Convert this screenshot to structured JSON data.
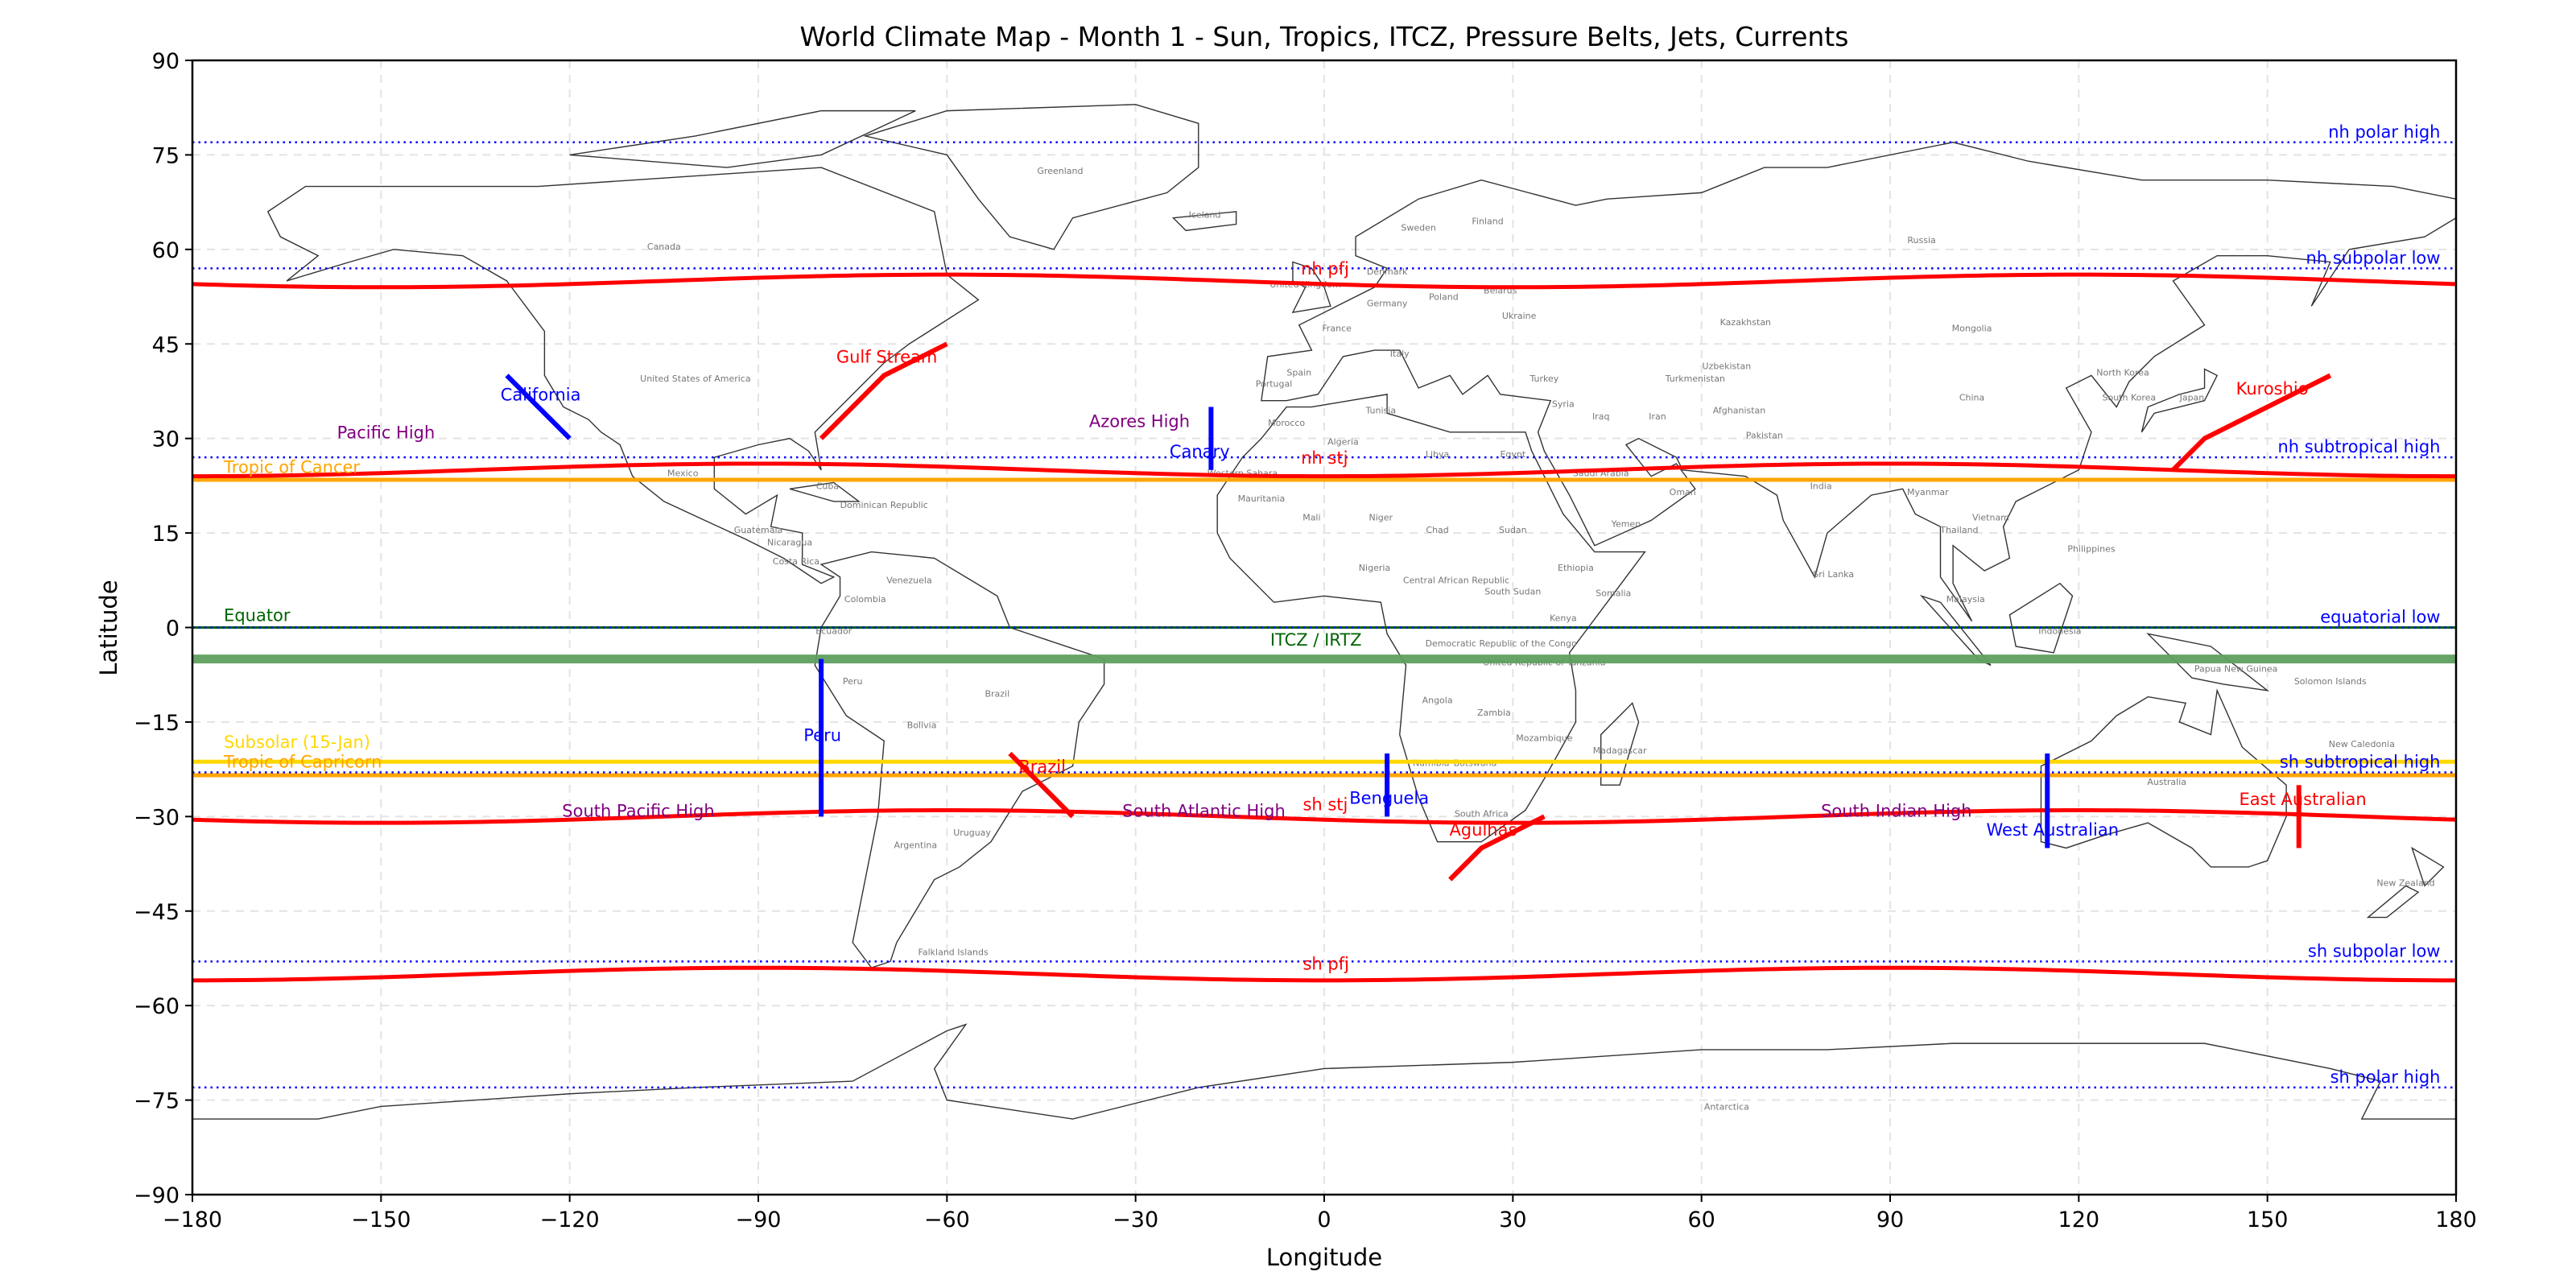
{
  "chart_data": {
    "type": "map",
    "title": "World Climate Map - Month 1 - Sun, Tropics, ITCZ, Pressure Belts, Jets, Currents",
    "xlabel": "Longitude",
    "ylabel": "Latitude",
    "xlim": [
      -180,
      180
    ],
    "ylim": [
      -90,
      90
    ],
    "xticks": [
      -180,
      -150,
      -120,
      -90,
      -60,
      -30,
      0,
      30,
      60,
      90,
      120,
      150,
      180
    ],
    "yticks": [
      -90,
      -75,
      -60,
      -45,
      -30,
      -15,
      0,
      15,
      30,
      45,
      60,
      75,
      90
    ],
    "grid": true,
    "colors": {
      "jet": "#ff0000",
      "warm_current": "#ff0000",
      "cold_current": "#0000ff",
      "pressure_belt": "#0000ff",
      "high_label": "#800080",
      "equator": "#006400",
      "itcz": "#5f9f5f",
      "tropic": "#ffa500",
      "subsolar": "#ffd700",
      "coastline": "#000000",
      "country_label": "#777777"
    },
    "reference_lines": [
      {
        "label": "Equator",
        "lat": 0,
        "color": "#006400",
        "label_lon": -175,
        "label_lat": 1
      },
      {
        "label": "Tropic of Cancer",
        "lat": 23.44,
        "color": "#ffa500",
        "label_lon": -175,
        "label_lat": 24.5
      },
      {
        "label": "Tropic of Capricorn",
        "lat": -23.44,
        "color": "#ffa500",
        "label_lon": -175,
        "label_lat": -22.2
      },
      {
        "label": "Subsolar (15-Jan)",
        "lat": -21.3,
        "color": "#ffd700",
        "label_lon": -175,
        "label_lat": -20.4
      }
    ],
    "itcz": {
      "label": "ITCZ / IRTZ",
      "lat": -5,
      "label_lon": -8.6,
      "label_lat": -2.9
    },
    "pressure_belts": [
      {
        "label": "nh polar high",
        "lat": 77
      },
      {
        "label": "nh subpolar low",
        "lat": 57
      },
      {
        "label": "nh subtropical high",
        "lat": 27
      },
      {
        "label": "equatorial low",
        "lat": 0
      },
      {
        "label": "sh subtropical high",
        "lat": -23
      },
      {
        "label": "sh subpolar low",
        "lat": -53
      },
      {
        "label": "sh polar high",
        "lat": -73
      }
    ],
    "jets": [
      {
        "label": "nh pfj",
        "lat": 55,
        "amplitude_deg": 1,
        "label_lon": -3.7,
        "label_lat": 56
      },
      {
        "label": "nh stj",
        "lat": 25,
        "amplitude_deg": 1,
        "label_lon": -3.7,
        "label_lat": 26
      },
      {
        "label": "sh stj",
        "lat": -30,
        "amplitude_deg": 1,
        "label_lon": -3.4,
        "label_lat": -29
      },
      {
        "label": "sh pfj",
        "lat": -55,
        "amplitude_deg": 1,
        "label_lon": -3.4,
        "label_lat": -54.3
      }
    ],
    "currents": [
      {
        "label": "California",
        "type": "cold",
        "path": [
          [
            -130,
            40
          ],
          [
            -120,
            30
          ]
        ],
        "label_lon": -131,
        "label_lat": 36
      },
      {
        "label": "Gulf Stream",
        "type": "warm",
        "path": [
          [
            -80,
            30
          ],
          [
            -70,
            40
          ],
          [
            -60,
            45
          ]
        ],
        "label_lon": -77.6,
        "label_lat": 42
      },
      {
        "label": "Canary",
        "type": "cold",
        "path": [
          [
            -18,
            35
          ],
          [
            -18,
            25
          ]
        ],
        "label_lon": -24.6,
        "label_lat": 27
      },
      {
        "label": "Kuroshio",
        "type": "warm",
        "path": [
          [
            135,
            25
          ],
          [
            140,
            30
          ],
          [
            160,
            40
          ]
        ],
        "label_lon": 145,
        "label_lat": 37
      },
      {
        "label": "Peru",
        "type": "cold",
        "path": [
          [
            -80,
            -5
          ],
          [
            -80,
            -30
          ]
        ],
        "label_lon": -82.8,
        "label_lat": -18
      },
      {
        "label": "Brazil",
        "type": "warm",
        "path": [
          [
            -50,
            -20
          ],
          [
            -40,
            -30
          ]
        ],
        "label_lon": -48.6,
        "label_lat": -23
      },
      {
        "label": "Benguela",
        "type": "cold",
        "path": [
          [
            10,
            -20
          ],
          [
            10,
            -30
          ]
        ],
        "label_lon": 4,
        "label_lat": -28
      },
      {
        "label": "Agulhas",
        "type": "warm",
        "path": [
          [
            35,
            -30
          ],
          [
            25,
            -35
          ],
          [
            20,
            -40
          ]
        ],
        "label_lon": 19.9,
        "label_lat": -33
      },
      {
        "label": "West Australian",
        "type": "cold",
        "path": [
          [
            115,
            -20
          ],
          [
            115,
            -35
          ]
        ],
        "label_lon": 105.3,
        "label_lat": -33
      },
      {
        "label": "East Australian",
        "type": "warm",
        "path": [
          [
            155,
            -25
          ],
          [
            155,
            -35
          ]
        ],
        "label_lon": 145.5,
        "label_lat": -28.2
      }
    ],
    "high_pressure_cells": [
      {
        "label": "Pacific High",
        "lon": -157,
        "lat": 30
      },
      {
        "label": "Azores High",
        "lon": -37.4,
        "lat": 31.8
      },
      {
        "label": "South Pacific High",
        "lon": -121.2,
        "lat": -30
      },
      {
        "label": "South Atlantic High",
        "lon": -32.1,
        "lat": -30
      },
      {
        "label": "South Indian High",
        "lon": 79,
        "lat": -30
      }
    ],
    "country_labels": [
      {
        "name": "Greenland",
        "lon": -42,
        "lat": 72
      },
      {
        "name": "Iceland",
        "lon": -19,
        "lat": 65
      },
      {
        "name": "Canada",
        "lon": -105,
        "lat": 60
      },
      {
        "name": "United States of America",
        "lon": -100,
        "lat": 39
      },
      {
        "name": "Mexico",
        "lon": -102,
        "lat": 24
      },
      {
        "name": "Cuba",
        "lon": -79,
        "lat": 22
      },
      {
        "name": "Dominican Republic",
        "lon": -70,
        "lat": 19
      },
      {
        "name": "Guatemala",
        "lon": -90,
        "lat": 15
      },
      {
        "name": "Nicaragua",
        "lon": -85,
        "lat": 13
      },
      {
        "name": "Costa Rica",
        "lon": -84,
        "lat": 10
      },
      {
        "name": "Venezuela",
        "lon": -66,
        "lat": 7
      },
      {
        "name": "Colombia",
        "lon": -73,
        "lat": 4
      },
      {
        "name": "Ecuador",
        "lon": -78,
        "lat": -1
      },
      {
        "name": "Peru",
        "lon": -75,
        "lat": -9
      },
      {
        "name": "Brazil",
        "lon": -52,
        "lat": -11
      },
      {
        "name": "Bolivia",
        "lon": -64,
        "lat": -16
      },
      {
        "name": "Argentina",
        "lon": -65,
        "lat": -35
      },
      {
        "name": "Uruguay",
        "lon": -56,
        "lat": -33
      },
      {
        "name": "Falkland Islands",
        "lon": -59,
        "lat": -52
      },
      {
        "name": "Russia",
        "lon": 95,
        "lat": 61
      },
      {
        "name": "Sweden",
        "lon": 15,
        "lat": 63
      },
      {
        "name": "Finland",
        "lon": 26,
        "lat": 64
      },
      {
        "name": "United Kingdom",
        "lon": -3,
        "lat": 54
      },
      {
        "name": "Denmark",
        "lon": 10,
        "lat": 56
      },
      {
        "name": "Poland",
        "lon": 19,
        "lat": 52
      },
      {
        "name": "Germany",
        "lon": 10,
        "lat": 51
      },
      {
        "name": "France",
        "lon": 2,
        "lat": 47
      },
      {
        "name": "Spain",
        "lon": -4,
        "lat": 40
      },
      {
        "name": "Portugal",
        "lon": -8,
        "lat": 40
      },
      {
        "name": "Italy",
        "lon": 12,
        "lat": 43
      },
      {
        "name": "Ukraine",
        "lon": 31,
        "lat": 49
      },
      {
        "name": "Belarus",
        "lon": 28,
        "lat": 53
      },
      {
        "name": "Kazakhstan",
        "lon": 67,
        "lat": 48
      },
      {
        "name": "Mongolia",
        "lon": 103,
        "lat": 47
      },
      {
        "name": "China",
        "lon": 103,
        "lat": 36
      },
      {
        "name": "Turkey",
        "lon": 35,
        "lat": 39
      },
      {
        "name": "Iran",
        "lon": 53,
        "lat": 33
      },
      {
        "name": "Iraq",
        "lon": 44,
        "lat": 33
      },
      {
        "name": "Syria",
        "lon": 38,
        "lat": 35
      },
      {
        "name": "Saudi Arabia",
        "lon": 44,
        "lat": 24
      },
      {
        "name": "Afghanistan",
        "lon": 66,
        "lat": 34
      },
      {
        "name": "Pakistan",
        "lon": 70,
        "lat": 30
      },
      {
        "name": "India",
        "lon": 79,
        "lat": 22
      },
      {
        "name": "Turkmenistan",
        "lon": 59,
        "lat": 39
      },
      {
        "name": "Uzbekistan",
        "lon": 64,
        "lat": 41
      },
      {
        "name": "Japan",
        "lon": 138,
        "lat": 36
      },
      {
        "name": "South Korea",
        "lon": 128,
        "lat": 36
      },
      {
        "name": "North Korea",
        "lon": 127,
        "lat": 40
      },
      {
        "name": "Myanmar",
        "lon": 96,
        "lat": 21
      },
      {
        "name": "Thailand",
        "lon": 101,
        "lat": 15
      },
      {
        "name": "Vietnam",
        "lon": 106,
        "lat": 16
      },
      {
        "name": "Philippines",
        "lon": 122,
        "lat": 12
      },
      {
        "name": "Malaysia",
        "lon": 102,
        "lat": 4
      },
      {
        "name": "Indonesia",
        "lon": 117,
        "lat": -1
      },
      {
        "name": "Papua New Guinea",
        "lon": 145,
        "lat": -7
      },
      {
        "name": "Solomon Islands",
        "lon": 160,
        "lat": -9
      },
      {
        "name": "Australia",
        "lon": 134,
        "lat": -25
      },
      {
        "name": "New Zealand",
        "lon": 172,
        "lat": -41
      },
      {
        "name": "New Caledonia",
        "lon": 165,
        "lat": -21
      },
      {
        "name": "Sri Lanka",
        "lon": 81,
        "lat": 8
      },
      {
        "name": "Yemen",
        "lon": 48,
        "lat": 16
      },
      {
        "name": "Oman",
        "lon": 57,
        "lat": 21
      },
      {
        "name": "Egypt",
        "lon": 30,
        "lat": 27
      },
      {
        "name": "Libya",
        "lon": 18,
        "lat": 27
      },
      {
        "name": "Algeria",
        "lon": 3,
        "lat": 28
      },
      {
        "name": "Tunisia",
        "lon": 9,
        "lat": 34
      },
      {
        "name": "Morocco",
        "lon": -6,
        "lat": 32
      },
      {
        "name": "Western Sahara",
        "lon": -13,
        "lat": 24
      },
      {
        "name": "Mauritania",
        "lon": -10,
        "lat": 20
      },
      {
        "name": "Mali",
        "lon": -2,
        "lat": 17
      },
      {
        "name": "Niger",
        "lon": 9,
        "lat": 17
      },
      {
        "name": "Chad",
        "lon": 18,
        "lat": 15
      },
      {
        "name": "Sudan",
        "lon": 30,
        "lat": 15
      },
      {
        "name": "Ethiopia",
        "lon": 40,
        "lat": 9
      },
      {
        "name": "Somalia",
        "lon": 46,
        "lat": 5
      },
      {
        "name": "Nigeria",
        "lon": 8,
        "lat": 9
      },
      {
        "name": "Kenya",
        "lon": 38,
        "lat": 1
      },
      {
        "name": "Central African Republic",
        "lon": 21,
        "lat": 7
      },
      {
        "name": "South Sudan",
        "lon": 30,
        "lat": 7
      },
      {
        "name": "Democratic Republic of the Congo",
        "lon": 23,
        "lat": -3
      },
      {
        "name": "United Republic of Tanzania",
        "lon": 35,
        "lat": -6
      },
      {
        "name": "Angola",
        "lon": 18,
        "lat": -12
      },
      {
        "name": "Zambia",
        "lon": 27,
        "lat": -14
      },
      {
        "name": "Mozambique",
        "lon": 35,
        "lat": -18
      },
      {
        "name": "Madagascar",
        "lon": 47,
        "lat": -20
      },
      {
        "name": "Namibia",
        "lon": 17,
        "lat": -22
      },
      {
        "name": "Botswana",
        "lon": 24,
        "lat": -22
      },
      {
        "name": "South Africa",
        "lon": 25,
        "lat": -30
      },
      {
        "name": "Antarctica",
        "lon": 64,
        "lat": -76.5
      }
    ]
  }
}
